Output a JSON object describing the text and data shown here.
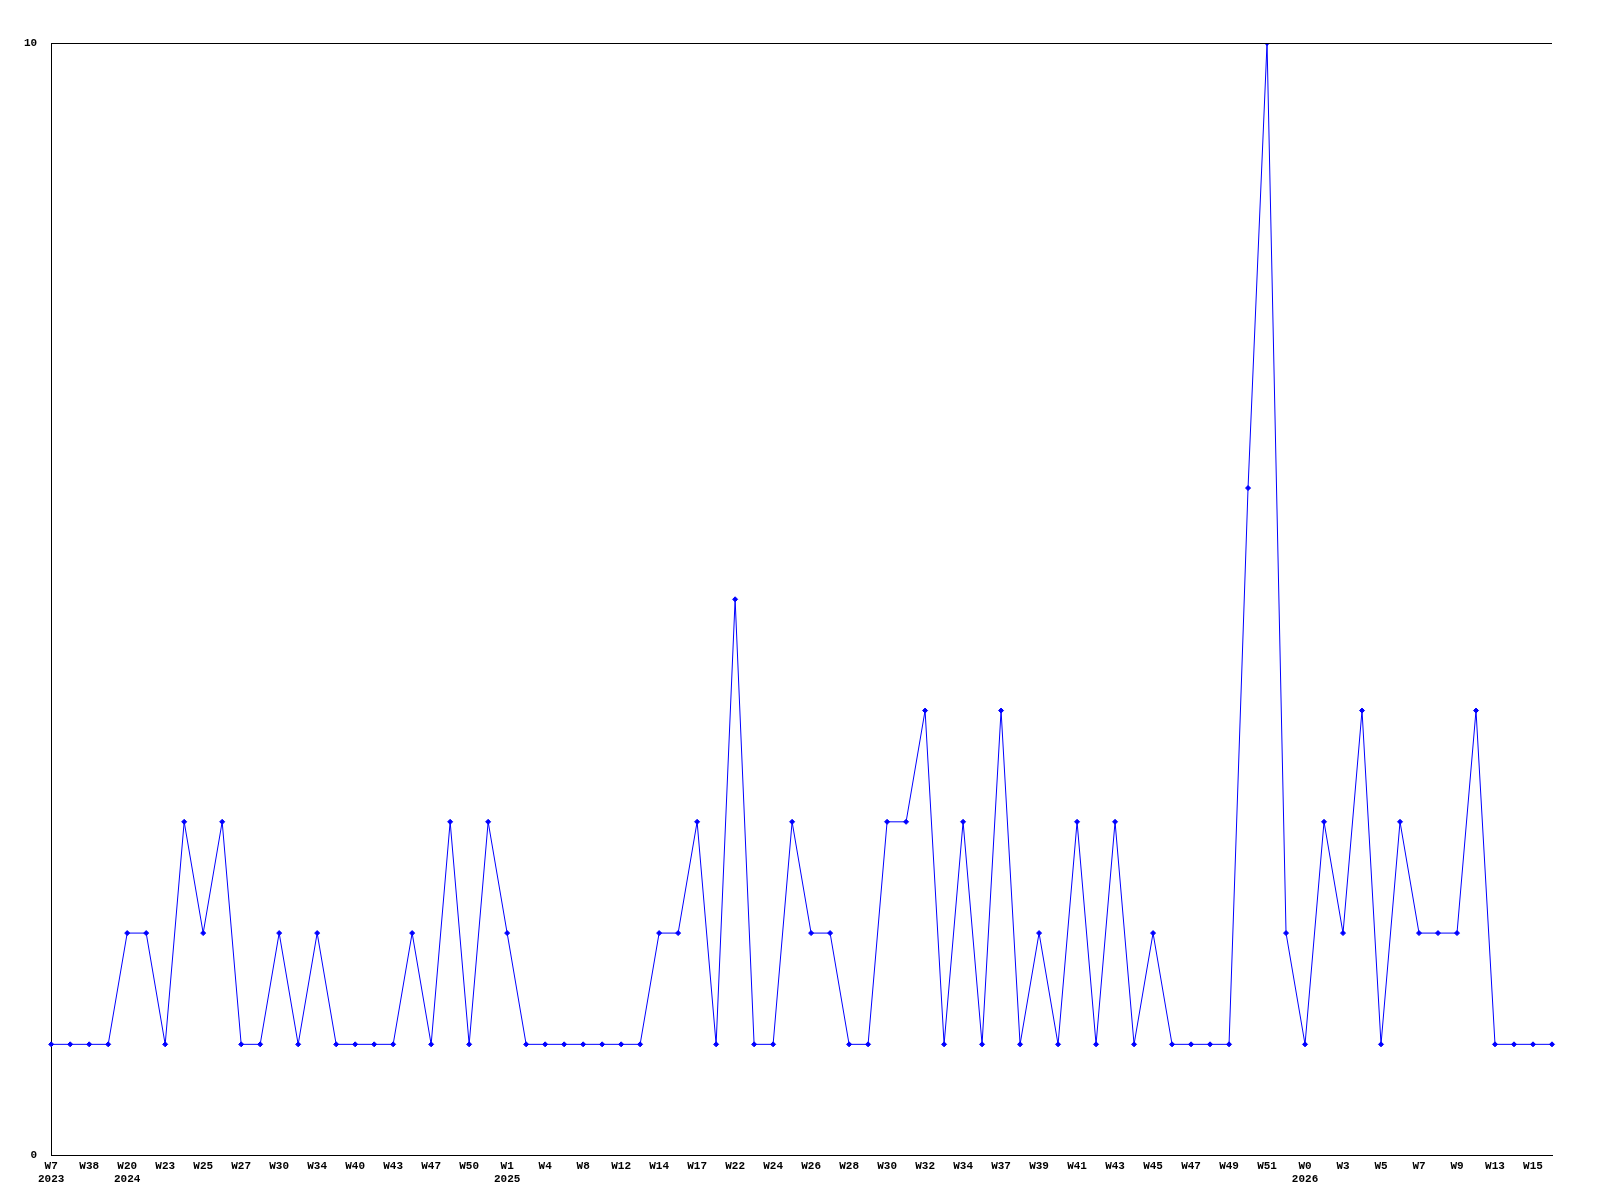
{
  "chart_data": {
    "type": "line",
    "categories": [
      "W7\n2023",
      null,
      "W38",
      null,
      "W20\n2024",
      null,
      "W23",
      null,
      "W25",
      null,
      "W27",
      null,
      "W30",
      null,
      "W34",
      null,
      "W40",
      null,
      "W43",
      null,
      "W47",
      null,
      "W50",
      null,
      "W1\n2025",
      null,
      "W4",
      null,
      "W8",
      null,
      "W12",
      null,
      "W14",
      null,
      "W17",
      null,
      "W22",
      null,
      "W24",
      null,
      "W26",
      null,
      "W28",
      null,
      "W30",
      null,
      "W32",
      null,
      "W34",
      null,
      "W37",
      null,
      "W39",
      null,
      "W41",
      null,
      "W43",
      null,
      "W45",
      null,
      "W47",
      null,
      "W49",
      null,
      "W51",
      null,
      "W0\n2026",
      null,
      "W3",
      null,
      "W5",
      null,
      "W7",
      null,
      "W9",
      null,
      "W13",
      null,
      "W15",
      null
    ],
    "series": [
      {
        "color": "#0000ff",
        "values": [
          1,
          1,
          1,
          1,
          2,
          2,
          1,
          3,
          2,
          3,
          1,
          1,
          2,
          1,
          2,
          1,
          1,
          1,
          1,
          2,
          1,
          3,
          1,
          3,
          2,
          1,
          1,
          1,
          1,
          1,
          1,
          1,
          2,
          2,
          3,
          1,
          5,
          1,
          1,
          3,
          2,
          2,
          1,
          1,
          3,
          3,
          4,
          1,
          3,
          1,
          4,
          1,
          2,
          1,
          3,
          1,
          3,
          1,
          2,
          1,
          1,
          1,
          1,
          6,
          10,
          2,
          1,
          3,
          2,
          4,
          1,
          3,
          2,
          2,
          2,
          4,
          1,
          1,
          1,
          1
        ]
      }
    ],
    "ylim": [
      0,
      10
    ],
    "yticks": [
      0,
      10
    ],
    "grid": false,
    "marker": "diamond",
    "legend": false
  }
}
